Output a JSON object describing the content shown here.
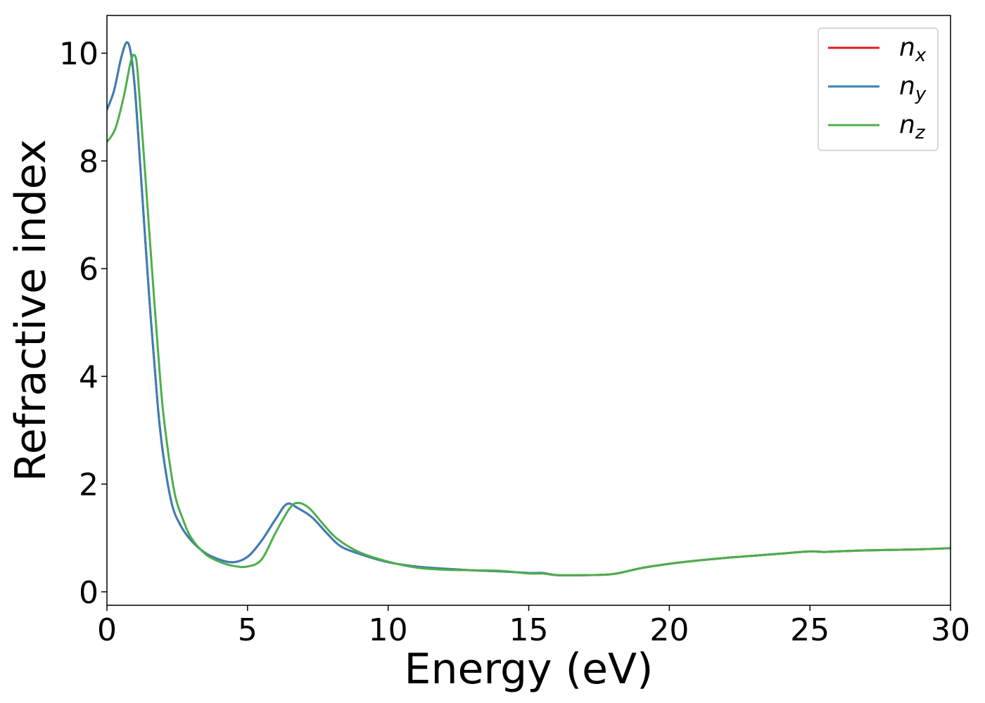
{
  "chart_data": {
    "type": "line",
    "xlabel": "Energy (eV)",
    "ylabel": "Refractive index",
    "xlim": [
      0,
      30
    ],
    "ylim": [
      -0.25,
      10.7
    ],
    "xticks": [
      0,
      5,
      10,
      15,
      20,
      25,
      30
    ],
    "yticks": [
      0,
      2,
      4,
      6,
      8,
      10
    ],
    "grid": false,
    "legend_position": "top-right",
    "series": [
      {
        "name": "n",
        "subscript": "x",
        "color": "#e41a1c",
        "x": [
          0,
          0.25,
          0.5,
          0.7,
          0.85,
          1.0,
          1.2,
          1.5,
          1.8,
          2.0,
          2.3,
          2.6,
          3.0,
          3.5,
          4.0,
          4.5,
          5.0,
          5.5,
          6.0,
          6.4,
          6.8,
          7.3,
          7.8,
          8.3,
          9.0,
          10.0,
          11.0,
          12.0,
          13.0,
          14.0,
          15.0,
          15.5,
          16.0,
          17.0,
          18.0,
          19.0,
          20.0,
          21.0,
          22.0,
          23.0,
          24.0,
          25.0,
          25.5,
          26.0,
          27.0,
          28.0,
          29.0,
          30.0
        ],
        "y": [
          8.95,
          9.3,
          9.9,
          10.2,
          10.0,
          9.3,
          7.8,
          5.5,
          3.5,
          2.55,
          1.65,
          1.25,
          0.95,
          0.72,
          0.6,
          0.55,
          0.65,
          0.95,
          1.35,
          1.63,
          1.55,
          1.38,
          1.1,
          0.85,
          0.7,
          0.55,
          0.47,
          0.43,
          0.4,
          0.38,
          0.35,
          0.35,
          0.31,
          0.31,
          0.33,
          0.44,
          0.52,
          0.58,
          0.63,
          0.67,
          0.71,
          0.75,
          0.74,
          0.75,
          0.77,
          0.78,
          0.79,
          0.81
        ]
      },
      {
        "name": "n",
        "subscript": "y",
        "color": "#3a7fb8",
        "x": [
          0,
          0.25,
          0.5,
          0.7,
          0.85,
          1.0,
          1.2,
          1.5,
          1.8,
          2.0,
          2.3,
          2.6,
          3.0,
          3.5,
          4.0,
          4.5,
          5.0,
          5.5,
          6.0,
          6.4,
          6.8,
          7.3,
          7.8,
          8.3,
          9.0,
          10.0,
          11.0,
          12.0,
          13.0,
          14.0,
          15.0,
          15.5,
          16.0,
          17.0,
          18.0,
          19.0,
          20.0,
          21.0,
          22.0,
          23.0,
          24.0,
          25.0,
          25.5,
          26.0,
          27.0,
          28.0,
          29.0,
          30.0
        ],
        "y": [
          8.95,
          9.3,
          9.9,
          10.2,
          10.0,
          9.3,
          7.8,
          5.5,
          3.5,
          2.55,
          1.65,
          1.25,
          0.95,
          0.72,
          0.6,
          0.55,
          0.65,
          0.95,
          1.35,
          1.63,
          1.55,
          1.38,
          1.1,
          0.85,
          0.7,
          0.55,
          0.47,
          0.43,
          0.4,
          0.38,
          0.35,
          0.35,
          0.31,
          0.31,
          0.33,
          0.44,
          0.52,
          0.58,
          0.63,
          0.67,
          0.71,
          0.75,
          0.74,
          0.75,
          0.77,
          0.78,
          0.79,
          0.81
        ]
      },
      {
        "name": "n",
        "subscript": "z",
        "color": "#4daf4a",
        "x": [
          0,
          0.3,
          0.6,
          0.85,
          1.0,
          1.1,
          1.3,
          1.6,
          1.9,
          2.1,
          2.4,
          2.7,
          3.0,
          3.5,
          4.0,
          4.5,
          5.0,
          5.5,
          6.0,
          6.5,
          6.8,
          7.2,
          7.7,
          8.2,
          9.0,
          10.0,
          11.0,
          12.0,
          13.0,
          14.0,
          15.0,
          15.5,
          16.0,
          17.0,
          18.0,
          19.0,
          20.0,
          21.0,
          22.0,
          23.0,
          24.0,
          25.0,
          25.5,
          26.0,
          27.0,
          28.0,
          29.0,
          30.0
        ],
        "y": [
          8.35,
          8.6,
          9.2,
          9.85,
          9.95,
          9.6,
          8.2,
          6.0,
          3.9,
          2.9,
          1.85,
          1.35,
          1.0,
          0.7,
          0.56,
          0.48,
          0.47,
          0.6,
          1.1,
          1.55,
          1.65,
          1.55,
          1.25,
          0.98,
          0.73,
          0.56,
          0.45,
          0.41,
          0.4,
          0.39,
          0.34,
          0.34,
          0.31,
          0.31,
          0.33,
          0.44,
          0.52,
          0.58,
          0.63,
          0.67,
          0.71,
          0.75,
          0.74,
          0.75,
          0.77,
          0.78,
          0.79,
          0.81
        ]
      }
    ]
  }
}
